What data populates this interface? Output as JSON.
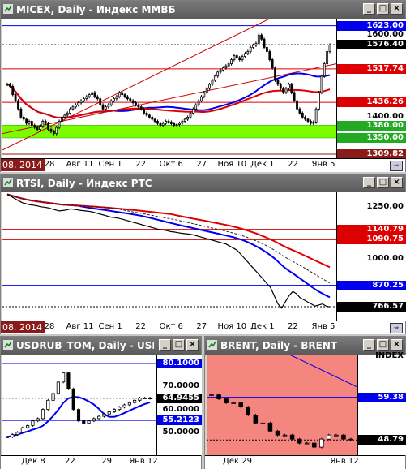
{
  "colors": {
    "up": "#000000",
    "down": "#000000",
    "blue_line": "#0000ee",
    "red_line": "#dd0000",
    "green_band": "#7cfc00"
  },
  "chart_data": [
    {
      "type": "candlestick",
      "title": "MICEX, Daily - Индекс ММВБ",
      "ylim": [
        1300,
        1640
      ],
      "x_labels": [
        "28",
        "Авг 11",
        "Сен 1",
        "22",
        "Окт 6",
        "27",
        "Ноя 10",
        "Дек 1",
        "22",
        "Янв 5"
      ],
      "price_labels": [
        {
          "value": 1623.0,
          "text": "1623.00",
          "style": "box-blue"
        },
        {
          "value": 1600.0,
          "text": "1600.00",
          "style": "plain"
        },
        {
          "value": 1576.4,
          "text": "1576.40",
          "style": "box-black"
        },
        {
          "value": 1517.74,
          "text": "1517.74",
          "style": "box-red"
        },
        {
          "value": 1436.26,
          "text": "1436.26",
          "style": "box-red"
        },
        {
          "value": 1400.0,
          "text": "1400.00",
          "style": "plain"
        },
        {
          "value": 1380.0,
          "text": "1380.00",
          "style": "box-green"
        },
        {
          "value": 1350.0,
          "text": "1350.00",
          "style": "box-green"
        },
        {
          "value": 1309.82,
          "text": "1309.82",
          "style": "box-darkred"
        }
      ],
      "closes": [
        1480,
        1475,
        1455,
        1440,
        1420,
        1400,
        1395,
        1385,
        1390,
        1380,
        1375,
        1370,
        1378,
        1390,
        1385,
        1370,
        1365,
        1360,
        1375,
        1390,
        1400,
        1405,
        1410,
        1420,
        1425,
        1430,
        1435,
        1440,
        1445,
        1450,
        1455,
        1460,
        1450,
        1445,
        1430,
        1420,
        1425,
        1430,
        1440,
        1445,
        1450,
        1460,
        1455,
        1450,
        1445,
        1440,
        1435,
        1430,
        1425,
        1420,
        1410,
        1405,
        1400,
        1395,
        1390,
        1385,
        1380,
        1385,
        1390,
        1388,
        1384,
        1380,
        1382,
        1385,
        1390,
        1395,
        1400,
        1410,
        1420,
        1430,
        1440,
        1450,
        1460,
        1470,
        1480,
        1490,
        1500,
        1510,
        1515,
        1520,
        1525,
        1530,
        1540,
        1550,
        1545,
        1540,
        1548,
        1555,
        1560,
        1570,
        1575,
        1580,
        1600,
        1590,
        1570,
        1560,
        1540,
        1520,
        1490,
        1480,
        1470,
        1460,
        1470,
        1480,
        1460,
        1440,
        1420,
        1410,
        1400,
        1395,
        1390,
        1385,
        1388,
        1420,
        1460,
        1500,
        1530,
        1560,
        1576
      ]
    },
    {
      "type": "line",
      "title": "RTSI, Daily - Индекс РТС",
      "ylim": [
        700,
        1320
      ],
      "x_labels": [
        "28",
        "Авг 11",
        "Сен 1",
        "22",
        "Окт 6",
        "27",
        "Ноя 10",
        "Дек 1",
        "22",
        "Янв 5"
      ],
      "price_labels": [
        {
          "value": 1250,
          "text": "1250.00",
          "style": "plain"
        },
        {
          "value": 1140.79,
          "text": "1140.79",
          "style": "box-red"
        },
        {
          "value": 1090.75,
          "text": "1090.75",
          "style": "box-red"
        },
        {
          "value": 1000,
          "text": "1000.00",
          "style": "plain"
        },
        {
          "value": 870.25,
          "text": "870.25",
          "style": "box-blue"
        },
        {
          "value": 766.57,
          "text": "766.57",
          "style": "box-black"
        }
      ],
      "closes": [
        1310,
        1300,
        1290,
        1280,
        1270,
        1265,
        1260,
        1258,
        1255,
        1250,
        1248,
        1245,
        1240,
        1235,
        1230,
        1232,
        1235,
        1240,
        1238,
        1235,
        1232,
        1230,
        1228,
        1225,
        1220,
        1215,
        1210,
        1205,
        1200,
        1198,
        1195,
        1190,
        1185,
        1180,
        1175,
        1170,
        1165,
        1160,
        1155,
        1150,
        1145,
        1140,
        1138,
        1135,
        1130,
        1128,
        1125,
        1122,
        1120,
        1118,
        1115,
        1110,
        1105,
        1100,
        1095,
        1090,
        1085,
        1080,
        1075,
        1070,
        1060,
        1050,
        1040,
        1020,
        1000,
        980,
        960,
        940,
        920,
        900,
        880,
        860,
        820,
        780,
        760,
        790,
        820,
        840,
        830,
        810,
        800,
        790,
        780,
        770,
        775,
        780,
        770,
        766
      ]
    },
    {
      "type": "candlestick",
      "title": "USDRUB_TOM, Daily - USDRUB",
      "ylim": [
        40,
        84
      ],
      "x_labels": [
        "Дек 8",
        "22",
        "29",
        "Янв 12"
      ],
      "price_labels": [
        {
          "value": 80.1,
          "text": "80.1000",
          "style": "box-blue"
        },
        {
          "value": 70.0,
          "text": "70.0000",
          "style": "plain"
        },
        {
          "value": 64.9455,
          "text": "64.9455",
          "style": "box-black"
        },
        {
          "value": 60.0,
          "text": "60.0000",
          "style": "plain"
        },
        {
          "value": 55.2123,
          "text": "55.2123",
          "style": "box-blue"
        },
        {
          "value": 50.0,
          "text": "50.0000",
          "style": "plain"
        }
      ],
      "closes": [
        48,
        49,
        50,
        52,
        53,
        55,
        56,
        60,
        64,
        67,
        72,
        76,
        69,
        60,
        55,
        54,
        55,
        56,
        57,
        58,
        59,
        60,
        61,
        62,
        63,
        64,
        65,
        65,
        64.9
      ]
    },
    {
      "type": "candlestick",
      "title": "BRENT, Daily - BRENT",
      "ylim": [
        45,
        70
      ],
      "x_labels": [
        "Дек 29",
        "Янв 12"
      ],
      "price_labels": [
        {
          "value": 69.5,
          "text": "INDEX",
          "style": "plain"
        },
        {
          "value": 59.38,
          "text": "59.38",
          "style": "box-blue"
        },
        {
          "value": 48.79,
          "text": "48.79",
          "style": "box-black"
        }
      ],
      "closes": [
        60,
        59,
        58,
        58,
        57,
        55,
        53,
        53,
        51,
        50,
        50,
        49,
        48,
        48,
        47,
        49,
        50,
        50,
        49,
        48.8
      ]
    }
  ],
  "windows": [
    {
      "title": "MICEX, Daily - Индекс ММВБ",
      "datebox": "08, 2014"
    },
    {
      "title": "RTSI, Daily - Индекс РТС",
      "datebox": "08, 2014"
    },
    {
      "title": "USDRUB_TOM, Daily - USDRUB_",
      "datebox": ""
    },
    {
      "title": "BRENT, Daily - BRENT",
      "datebox": ""
    }
  ],
  "winbtns": {
    "min": "_",
    "max": "□",
    "close": "×"
  },
  "corner_icon": "chart-scroll-icon"
}
